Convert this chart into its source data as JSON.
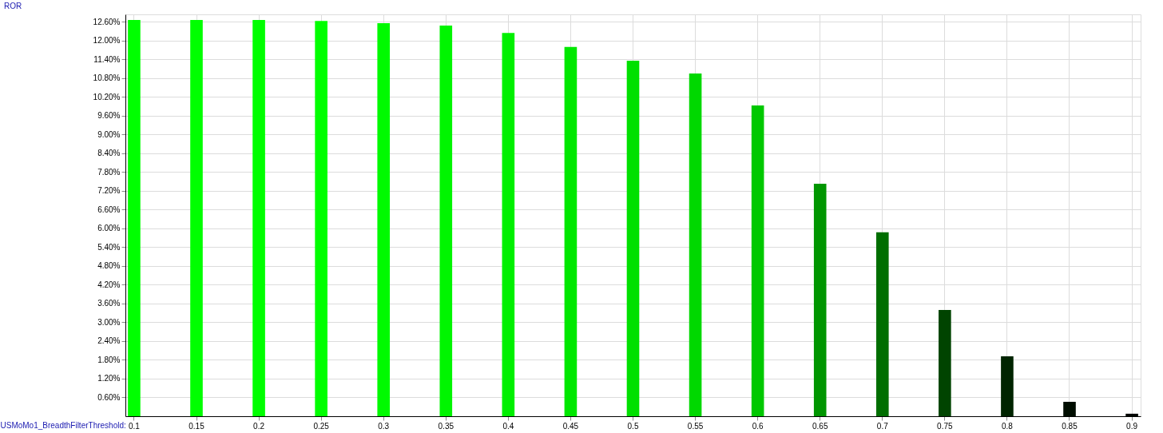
{
  "chart_data": {
    "type": "bar",
    "annotations": [
      "ROR"
    ],
    "xlabel": "USMoMo1_BreadthFilterThreshold:",
    "categories": [
      "0.1",
      "0.15",
      "0.2",
      "0.25",
      "0.3",
      "0.35",
      "0.4",
      "0.45",
      "0.5",
      "0.55",
      "0.6",
      "0.65",
      "0.7",
      "0.75",
      "0.8",
      "0.85",
      "0.9"
    ],
    "values": [
      12.65,
      12.65,
      12.65,
      12.62,
      12.55,
      12.47,
      12.24,
      11.79,
      11.35,
      10.94,
      9.92,
      7.42,
      5.87,
      3.39,
      1.91,
      0.46,
      0.08
    ],
    "colors": [
      "#00ff00",
      "#00ff00",
      "#00ff00",
      "#00ff00",
      "#00fa00",
      "#00f500",
      "#00f000",
      "#00e800",
      "#00e000",
      "#00d800",
      "#00c800",
      "#009600",
      "#006e00",
      "#004400",
      "#002400",
      "#000d00",
      "#000500"
    ],
    "ylim": [
      0,
      12.83
    ],
    "yticks": [
      {
        "value": 0.6,
        "label": "0.60%"
      },
      {
        "value": 1.2,
        "label": "1.20%"
      },
      {
        "value": 1.8,
        "label": "1.80%"
      },
      {
        "value": 2.4,
        "label": "2.40%"
      },
      {
        "value": 3.0,
        "label": "3.00%"
      },
      {
        "value": 3.6,
        "label": "3.60%"
      },
      {
        "value": 4.2,
        "label": "4.20%"
      },
      {
        "value": 4.8,
        "label": "4.80%"
      },
      {
        "value": 5.4,
        "label": "5.40%"
      },
      {
        "value": 6.0,
        "label": "6.00%"
      },
      {
        "value": 6.6,
        "label": "6.60%"
      },
      {
        "value": 7.2,
        "label": "7.20%"
      },
      {
        "value": 7.8,
        "label": "7.80%"
      },
      {
        "value": 8.4,
        "label": "8.40%"
      },
      {
        "value": 9.0,
        "label": "9.00%"
      },
      {
        "value": 9.6,
        "label": "9.60%"
      },
      {
        "value": 10.2,
        "label": "10.20%"
      },
      {
        "value": 10.8,
        "label": "10.80%"
      },
      {
        "value": 11.4,
        "label": "11.40%"
      },
      {
        "value": 12.0,
        "label": "12.00%"
      },
      {
        "value": 12.6,
        "label": "12.60%"
      }
    ],
    "grid": true
  }
}
